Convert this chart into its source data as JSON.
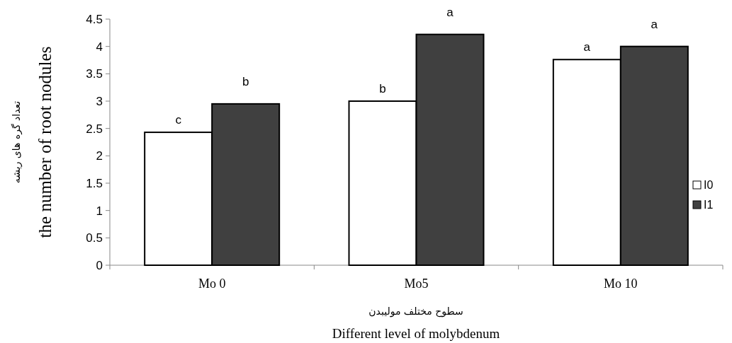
{
  "chart_data": {
    "type": "bar",
    "xlabel": "Different level of molybdenum",
    "ylabel": "the number of root nodules",
    "annotations": [
      "تعداد گره های ریشه",
      "سطوح مختلف مولیبدن"
    ],
    "categories": [
      "Mo 0",
      "Mo5",
      "Mo 10"
    ],
    "series": [
      {
        "name": "I0",
        "color": "#ffffff",
        "values": [
          2.43,
          3.0,
          3.76
        ],
        "value_labels": [
          "c",
          "b",
          "a"
        ]
      },
      {
        "name": "I1",
        "color": "#404040",
        "values": [
          2.95,
          4.22,
          4.0
        ],
        "value_labels": [
          "b",
          "a",
          "a"
        ]
      }
    ],
    "ylim": [
      0,
      4.5
    ],
    "yticks": [
      0,
      0.5,
      1,
      1.5,
      2,
      2.5,
      3,
      3.5,
      4,
      4.5
    ],
    "grid": false,
    "legend": "right"
  }
}
